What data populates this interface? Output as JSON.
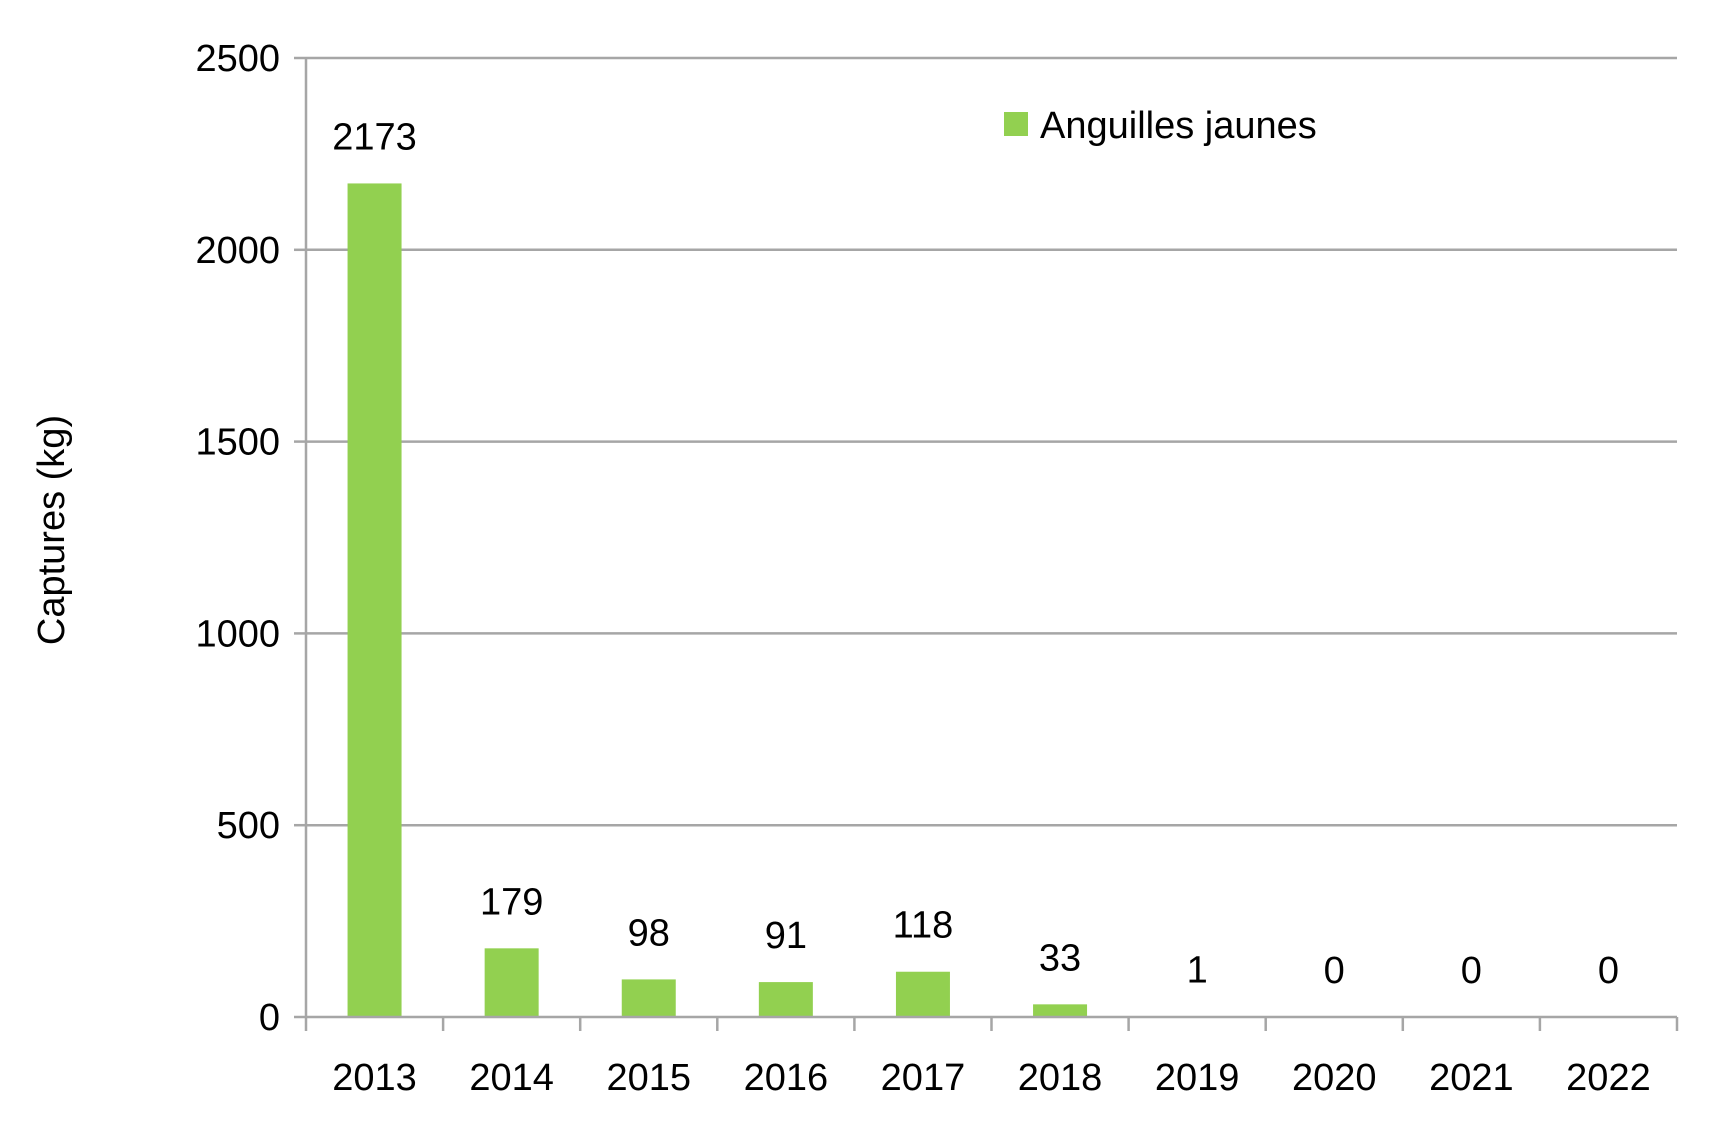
{
  "chart_data": {
    "type": "bar",
    "title": "",
    "xlabel": "",
    "ylabel": "Captures (kg)",
    "categories": [
      "2013",
      "2014",
      "2015",
      "2016",
      "2017",
      "2018",
      "2019",
      "2020",
      "2021",
      "2022"
    ],
    "series": [
      {
        "name": "Anguilles jaunes",
        "values": [
          2173,
          179,
          98,
          91,
          118,
          33,
          1,
          0,
          0,
          0
        ],
        "color": "#92d050"
      }
    ],
    "data_labels": [
      "2173",
      "179",
      "98",
      "91",
      "118",
      "33",
      "1",
      "0",
      "0",
      "0"
    ],
    "ylim": [
      0,
      2500
    ],
    "yticks": [
      0,
      500,
      1000,
      1500,
      2000,
      2500
    ],
    "grid": true,
    "gridline_color": "#a6a6a6",
    "legend_position": "top-right"
  }
}
